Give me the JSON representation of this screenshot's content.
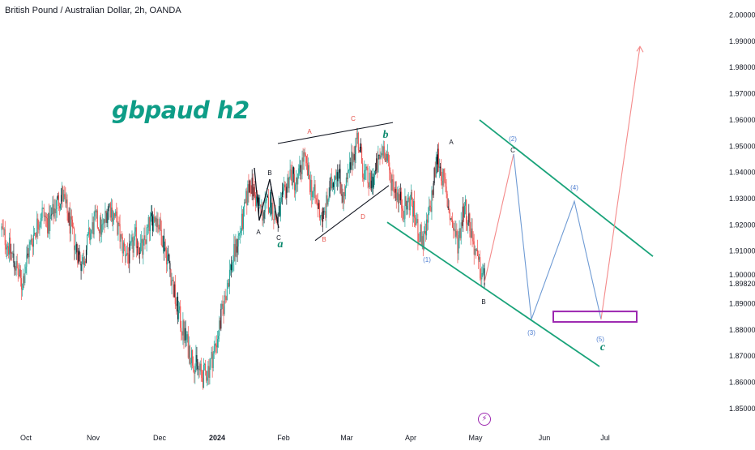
{
  "header": {
    "symbol_line": "British Pound / Australian Dollar, 2h, OANDA"
  },
  "watermark": "gbpaud h2",
  "colors": {
    "up": "#26a69a",
    "down": "#ef5350",
    "candle_dark": "#131722",
    "channel": "#1aa37a",
    "wave_red": "#f48a8a",
    "wave_blue": "#6f9bd4",
    "label_black": "#131722",
    "label_red": "#e5534b",
    "label_blue": "#4f7fd1",
    "box": "#9c27b0",
    "teal_label": "#0e8a6f"
  },
  "event_icon": {
    "name": "lightning-icon",
    "glyph": "⚡"
  },
  "chart_data": {
    "type": "candlestick",
    "title": "British Pound / Australian Dollar, 2h, OANDA",
    "x_axis": {
      "type": "time",
      "ticks": [
        "Oct",
        "Nov",
        "Dec",
        "2024",
        "Feb",
        "Mar",
        "Apr",
        "May",
        "Jun",
        "Jul"
      ]
    },
    "y_axis": {
      "position": "right",
      "ylim": [
        1.845,
        2.002
      ],
      "ticks": [
        "2.00000",
        "1.99000",
        "1.98000",
        "1.97000",
        "1.96000",
        "1.95000",
        "1.94000",
        "1.93000",
        "1.92000",
        "1.91000",
        "1.90000",
        "1.89820",
        "1.89000",
        "1.88000",
        "1.87000",
        "1.86000",
        "1.85000"
      ],
      "highlight_value": "1.89820"
    },
    "price_path": [
      [
        "Oct",
        1.918
      ],
      [
        "Oct",
        1.912
      ],
      [
        "Oct",
        1.905
      ],
      [
        "Oct",
        1.897
      ],
      [
        "Oct",
        1.91
      ],
      [
        "Oct",
        1.918
      ],
      [
        "Oct",
        1.925
      ],
      [
        "Oct",
        1.92
      ],
      [
        "Oct",
        1.927
      ],
      [
        "Oct",
        1.932
      ],
      [
        "Oct",
        1.922
      ],
      [
        "Nov",
        1.912
      ],
      [
        "Nov",
        1.905
      ],
      [
        "Nov",
        1.915
      ],
      [
        "Nov",
        1.922
      ],
      [
        "Nov",
        1.918
      ],
      [
        "Nov",
        1.928
      ],
      [
        "Nov",
        1.922
      ],
      [
        "Nov",
        1.912
      ],
      [
        "Nov",
        1.908
      ],
      [
        "Nov",
        1.915
      ],
      [
        "Dec",
        1.91
      ],
      [
        "Dec",
        1.92
      ],
      [
        "Dec",
        1.924
      ],
      [
        "Dec",
        1.915
      ],
      [
        "Dec",
        1.905
      ],
      [
        "Dec",
        1.89
      ],
      [
        "Dec",
        1.88
      ],
      [
        "Dec",
        1.872
      ],
      [
        "Dec",
        1.866
      ],
      [
        "Dec",
        1.862
      ],
      [
        "Dec",
        1.866
      ],
      [
        "2024",
        1.875
      ],
      [
        "2024",
        1.888
      ],
      [
        "2024",
        1.902
      ],
      [
        "2024",
        1.912
      ],
      [
        "2024",
        1.922
      ],
      [
        "2024",
        1.937
      ],
      [
        "2024",
        1.929
      ],
      [
        "2024",
        1.924
      ],
      [
        "2024",
        1.93
      ],
      [
        "2024",
        1.921
      ],
      [
        "Feb",
        1.93
      ],
      [
        "Feb",
        1.94
      ],
      [
        "Feb",
        1.935
      ],
      [
        "Feb",
        1.946
      ],
      [
        "Feb",
        1.936
      ],
      [
        "Feb",
        1.928
      ],
      [
        "Feb",
        1.922
      ],
      [
        "Feb",
        1.934
      ],
      [
        "Feb",
        1.942
      ],
      [
        "Feb",
        1.93
      ],
      [
        "Mar",
        1.942
      ],
      [
        "Mar",
        1.954
      ],
      [
        "Mar",
        1.94
      ],
      [
        "Mar",
        1.935
      ],
      [
        "Mar",
        1.942
      ],
      [
        "Mar",
        1.95
      ],
      [
        "Mar",
        1.938
      ],
      [
        "Mar",
        1.932
      ],
      [
        "Mar",
        1.926
      ],
      [
        "Apr",
        1.93
      ],
      [
        "Apr",
        1.918
      ],
      [
        "Apr",
        1.913
      ],
      [
        "Apr",
        1.928
      ],
      [
        "Apr",
        1.947
      ],
      [
        "Apr",
        1.935
      ],
      [
        "Apr",
        1.922
      ],
      [
        "May",
        1.913
      ],
      [
        "May",
        1.928
      ],
      [
        "May",
        1.918
      ],
      [
        "May",
        1.905
      ],
      [
        "May",
        1.899
      ]
    ],
    "channel_lines": [
      {
        "name": "upper-channel",
        "points": [
          [
            "May",
            1.96
          ],
          [
            "Jul+",
            1.908
          ]
        ]
      },
      {
        "name": "lower-channel",
        "points": [
          [
            "Apr",
            1.921
          ],
          [
            "Jul+",
            1.866
          ]
        ]
      },
      {
        "name": "triangle-top",
        "points": [
          [
            "Feb",
            1.951
          ],
          [
            "Mar",
            1.959
          ]
        ]
      },
      {
        "name": "triangle-bottom",
        "points": [
          [
            "Feb",
            1.914
          ],
          [
            "Mar",
            1.935
          ]
        ]
      }
    ],
    "projected_waves": [
      {
        "name": "red-leg-1",
        "color": "red",
        "points": [
          [
            "May",
            1.898
          ],
          [
            "May",
            1.947
          ]
        ]
      },
      {
        "name": "blue-legs",
        "color": "blue",
        "points": [
          [
            "May",
            1.947
          ],
          [
            "Jun",
            1.884
          ],
          [
            "Jun",
            1.929
          ],
          [
            "Jul",
            1.884
          ]
        ]
      },
      {
        "name": "red-leg-2",
        "color": "red",
        "points": [
          [
            "Jul",
            1.884
          ],
          [
            "Jul+",
            1.988
          ]
        ]
      }
    ],
    "target_zone": {
      "low": 1.883,
      "high": 1.887
    },
    "annotations": [
      {
        "text": "A",
        "color": "black"
      },
      {
        "text": "B",
        "color": "black"
      },
      {
        "text": "C",
        "color": "black"
      },
      {
        "text": "a",
        "color": "teal",
        "style": "big"
      },
      {
        "text": "A",
        "color": "red"
      },
      {
        "text": "C",
        "color": "red"
      },
      {
        "text": "B",
        "color": "red"
      },
      {
        "text": "D",
        "color": "red"
      },
      {
        "text": "b",
        "color": "teal",
        "style": "big"
      },
      {
        "text": "A",
        "color": "black"
      },
      {
        "text": "(1)",
        "color": "blue"
      },
      {
        "text": "B",
        "color": "black"
      },
      {
        "text": "(2)",
        "color": "blue"
      },
      {
        "text": "C",
        "color": "black"
      },
      {
        "text": "(3)",
        "color": "blue"
      },
      {
        "text": "(4)",
        "color": "blue"
      },
      {
        "text": "(5)",
        "color": "blue"
      },
      {
        "text": "c",
        "color": "teal",
        "style": "big"
      }
    ]
  }
}
